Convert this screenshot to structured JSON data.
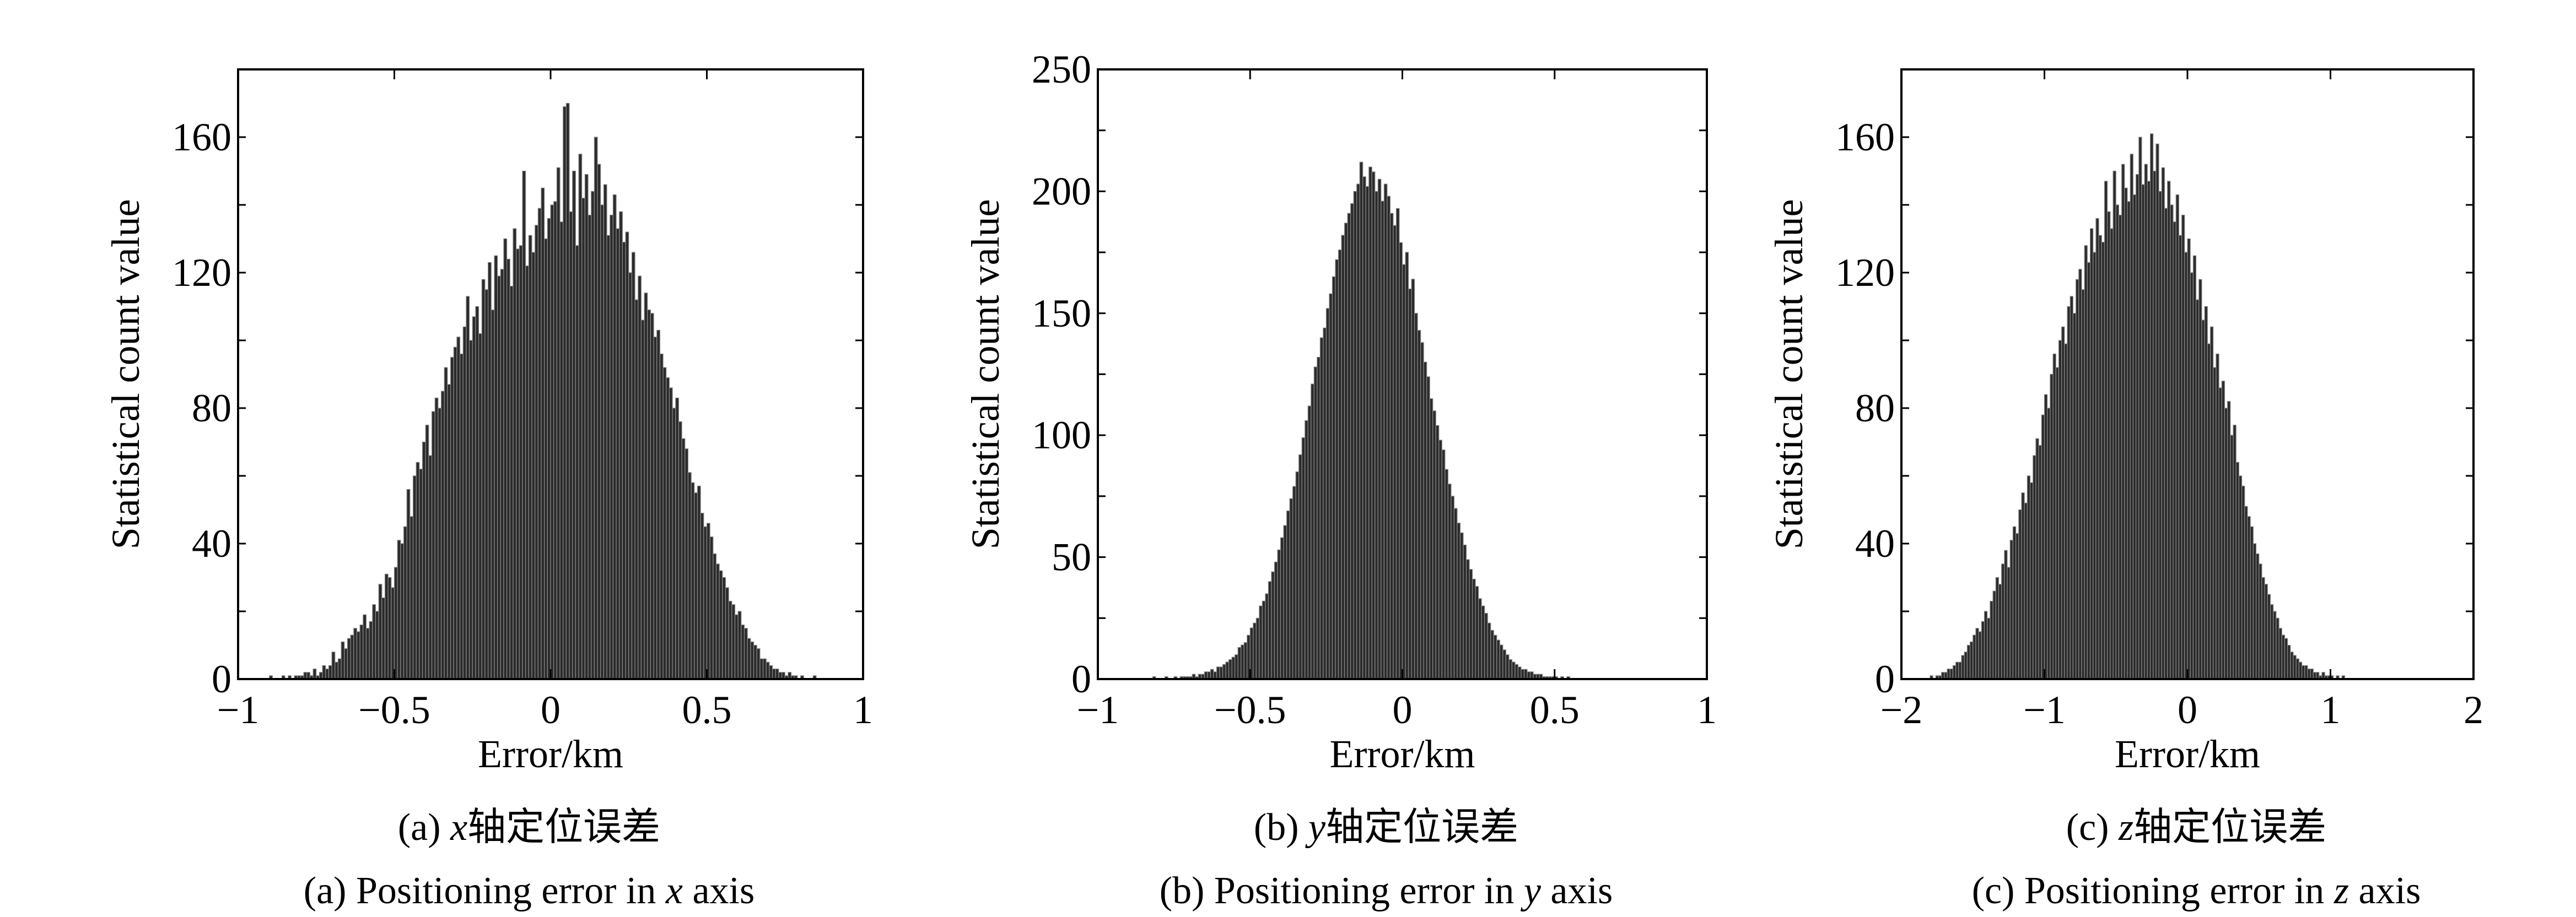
{
  "colors": {
    "background": "#ffffff",
    "bar_fill": "#2b2b2b",
    "bar_edge": "#8a8a8a",
    "axis": "#000000"
  },
  "chart_data": [
    {
      "type": "bar",
      "ylabel": "Statistical count value",
      "xlabel": "Error/km",
      "xlim": [
        -1,
        1
      ],
      "ylim": [
        0,
        180
      ],
      "xticks": [
        -1,
        -0.5,
        0,
        0.5,
        1
      ],
      "xtick_labels": [
        "−1",
        "−0.5",
        "0",
        "0.5",
        "1"
      ],
      "yticks": [
        0,
        40,
        80,
        120,
        160
      ],
      "ytick_labels": [
        "0",
        "40",
        "80",
        "120",
        "160"
      ],
      "grid": false,
      "bins": {
        "start": -0.9,
        "width": 0.01
      },
      "values": [
        1,
        0,
        0,
        0,
        1,
        0,
        1,
        0,
        1,
        1,
        1,
        2,
        2,
        1,
        3,
        1,
        2,
        4,
        3,
        4,
        8,
        5,
        6,
        11,
        9,
        12,
        13,
        15,
        14,
        16,
        19,
        15,
        17,
        22,
        20,
        28,
        24,
        31,
        30,
        27,
        33,
        41,
        40,
        45,
        56,
        48,
        60,
        64,
        62,
        70,
        75,
        66,
        79,
        83,
        80,
        85,
        92,
        87,
        95,
        98,
        101,
        96,
        104,
        113,
        100,
        107,
        110,
        102,
        118,
        115,
        123,
        109,
        125,
        119,
        121,
        130,
        124,
        116,
        133,
        127,
        128,
        150,
        122,
        131,
        126,
        134,
        139,
        145,
        130,
        136,
        140,
        141,
        151,
        135,
        169,
        170,
        138,
        150,
        128,
        155,
        142,
        149,
        137,
        144,
        160,
        152,
        140,
        146,
        131,
        137,
        143,
        133,
        138,
        129,
        132,
        120,
        126,
        112,
        119,
        106,
        114,
        109,
        108,
        101,
        103,
        96,
        92,
        89,
        86,
        80,
        83,
        76,
        71,
        68,
        61,
        58,
        55,
        57,
        49,
        45,
        46,
        42,
        37,
        34,
        32,
        30,
        27,
        23,
        22,
        19,
        20,
        16,
        15,
        12,
        11,
        10,
        9,
        6,
        6,
        5,
        4,
        3,
        3,
        2,
        2,
        1,
        2,
        1,
        1,
        0,
        1,
        0,
        0,
        0,
        1,
        0,
        0,
        0,
        0,
        0
      ],
      "caption_cn": "(a) x轴定位误差",
      "caption_en": "(a) Positioning error in x axis"
    },
    {
      "type": "bar",
      "ylabel": "Statistical count value",
      "xlabel": "Error/km",
      "xlim": [
        -1,
        1
      ],
      "ylim": [
        0,
        250
      ],
      "xticks": [
        -1,
        -0.5,
        0,
        0.5,
        1
      ],
      "xtick_labels": [
        "−1",
        "−0.5",
        "0",
        "0.5",
        "1"
      ],
      "yticks": [
        0,
        50,
        100,
        150,
        200,
        250
      ],
      "ytick_labels": [
        "0",
        "50",
        "100",
        "150",
        "200",
        "250"
      ],
      "grid": false,
      "bins": {
        "start": -0.9,
        "width": 0.01
      },
      "values": [
        0,
        0,
        0,
        0,
        0,
        0,
        0,
        0,
        1,
        0,
        0,
        0,
        1,
        0,
        0,
        1,
        0,
        1,
        1,
        1,
        1,
        2,
        1,
        2,
        2,
        3,
        3,
        4,
        3,
        5,
        5,
        6,
        7,
        8,
        9,
        10,
        13,
        14,
        15,
        18,
        21,
        23,
        25,
        30,
        32,
        35,
        40,
        44,
        48,
        53,
        58,
        63,
        69,
        74,
        79,
        85,
        92,
        99,
        106,
        112,
        121,
        128,
        132,
        140,
        144,
        152,
        158,
        165,
        172,
        176,
        182,
        187,
        191,
        195,
        200,
        203,
        212,
        206,
        202,
        210,
        208,
        200,
        205,
        196,
        203,
        198,
        191,
        186,
        193,
        179,
        170,
        175,
        160,
        164,
        150,
        143,
        138,
        130,
        124,
        115,
        110,
        104,
        98,
        94,
        86,
        80,
        75,
        70,
        64,
        60,
        55,
        49,
        45,
        41,
        38,
        33,
        30,
        27,
        23,
        20,
        18,
        16,
        14,
        12,
        10,
        8,
        7,
        6,
        5,
        4,
        4,
        3,
        3,
        2,
        2,
        2,
        1,
        1,
        1,
        1,
        1,
        0,
        1,
        0,
        1,
        0,
        0,
        0,
        0,
        0,
        0,
        0,
        0,
        0,
        0,
        0,
        0,
        0,
        0,
        0,
        0,
        0,
        0,
        0,
        0,
        0,
        0,
        0,
        0,
        0,
        0,
        0,
        0,
        0,
        0,
        0,
        0,
        0,
        0,
        0
      ],
      "caption_cn": "(b) y轴定位误差",
      "caption_en": "(b) Positioning error in y axis"
    },
    {
      "type": "bar",
      "ylabel": "Statistical count value",
      "xlabel": "Error/km",
      "xlim": [
        -2,
        2
      ],
      "ylim": [
        0,
        180
      ],
      "xticks": [
        -2,
        -1,
        0,
        1,
        2
      ],
      "xtick_labels": [
        "−2",
        "−1",
        "0",
        "1",
        "2"
      ],
      "yticks": [
        0,
        40,
        80,
        120,
        160
      ],
      "ytick_labels": [
        "0",
        "40",
        "80",
        "120",
        "160"
      ],
      "grid": false,
      "bins": {
        "start": -1.8,
        "width": 0.02
      },
      "values": [
        1,
        0,
        1,
        1,
        2,
        2,
        3,
        3,
        4,
        5,
        5,
        7,
        8,
        10,
        11,
        13,
        15,
        14,
        17,
        20,
        18,
        23,
        26,
        30,
        28,
        34,
        38,
        33,
        41,
        45,
        43,
        50,
        55,
        52,
        60,
        58,
        66,
        71,
        69,
        78,
        84,
        80,
        90,
        96,
        92,
        100,
        104,
        99,
        110,
        113,
        108,
        118,
        121,
        115,
        128,
        123,
        133,
        126,
        136,
        131,
        129,
        147,
        138,
        133,
        150,
        140,
        137,
        152,
        145,
        141,
        155,
        143,
        149,
        160,
        146,
        152,
        147,
        161,
        150,
        158,
        144,
        151,
        139,
        147,
        140,
        135,
        143,
        131,
        137,
        126,
        130,
        120,
        125,
        112,
        118,
        106,
        110,
        99,
        104,
        92,
        96,
        86,
        88,
        80,
        82,
        72,
        75,
        64,
        60,
        57,
        51,
        48,
        45,
        40,
        37,
        34,
        30,
        28,
        25,
        22,
        20,
        18,
        15,
        13,
        12,
        10,
        8,
        7,
        6,
        5,
        4,
        4,
        3,
        3,
        2,
        2,
        1,
        2,
        1,
        1,
        1,
        0,
        1,
        0,
        1,
        0,
        0,
        0,
        0,
        0,
        0,
        0,
        0,
        0,
        0,
        0,
        0,
        0,
        0,
        0,
        0,
        0,
        0,
        0,
        0,
        0,
        0,
        0,
        0,
        0,
        0,
        0,
        0,
        0,
        0,
        0,
        0,
        0,
        0,
        0
      ],
      "caption_cn": "(c) z轴定位误差",
      "caption_en": "(c) Positioning error in z axis"
    }
  ]
}
